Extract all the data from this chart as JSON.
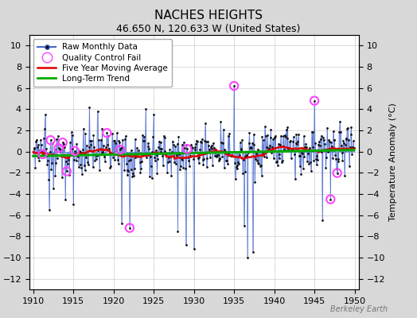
{
  "title": "NACHES HEIGHTS",
  "subtitle": "46.650 N, 120.633 W (United States)",
  "ylabel": "Temperature Anomaly (°C)",
  "watermark": "Berkeley Earth",
  "xlim": [
    1909.5,
    1950.5
  ],
  "ylim": [
    -13,
    11
  ],
  "yticks": [
    -12,
    -10,
    -8,
    -6,
    -4,
    -2,
    0,
    2,
    4,
    6,
    8,
    10
  ],
  "xticks": [
    1910,
    1915,
    1920,
    1925,
    1930,
    1935,
    1940,
    1945,
    1950
  ],
  "bg_color": "#d8d8d8",
  "plot_bg": "#ffffff",
  "raw_color": "#4466cc",
  "raw_alpha": 0.6,
  "dot_color": "#111111",
  "qc_color": "#ff44ff",
  "moving_avg_color": "#dd0000",
  "trend_color": "#00aa00",
  "seed": 37,
  "n_months": 480,
  "start_year": 1910,
  "moving_avg_window": 60,
  "figsize": [
    5.24,
    4.0
  ],
  "dpi": 100
}
